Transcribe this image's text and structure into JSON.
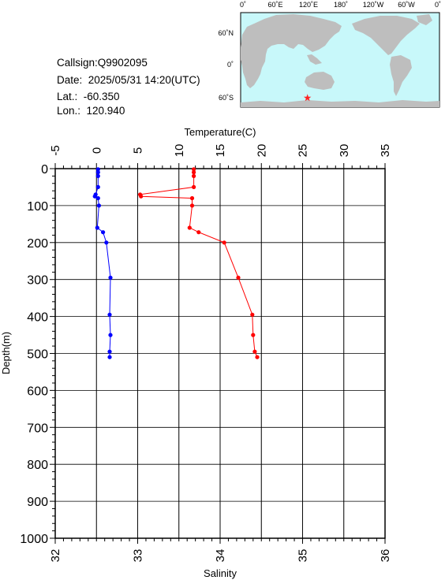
{
  "info": {
    "callsign": "Callsign:Q9902095",
    "date": "Date:  2025/05/31 14:20(UTC)",
    "lat": "Lat.:  -60.350",
    "lon": "Lon.:  120.940"
  },
  "map": {
    "top_labels": [
      "0˚",
      "60˚E",
      "120˚E",
      "180˚",
      "120˚W",
      "60˚W",
      "0˚"
    ],
    "lat_labels": [
      "60˚N",
      "0˚",
      "60˚S"
    ],
    "ocean_color": "#c8f8fa",
    "land_color": "#bebebe",
    "marker_icon": "star-icon",
    "marker_color": "#ff2222",
    "marker": {
      "lon": 120.94,
      "lat": -60.35
    }
  },
  "chart_data": {
    "type": "line",
    "top_axis": {
      "label": "Temperature(C)",
      "range": [
        -5,
        35
      ],
      "ticks": [
        "-5",
        "0",
        "5",
        "10",
        "15",
        "20",
        "25",
        "30",
        "35"
      ]
    },
    "bottom_axis": {
      "label": "Salinity",
      "range": [
        32,
        36
      ],
      "ticks": [
        "32",
        "33",
        "34",
        "35",
        "36"
      ]
    },
    "y_axis": {
      "label": "Depth(m)",
      "range": [
        0,
        1000
      ],
      "inverted": true,
      "ticks": [
        "0",
        "100",
        "200",
        "300",
        "400",
        "500",
        "600",
        "700",
        "800",
        "900",
        "1000"
      ]
    },
    "grid": true,
    "series": [
      {
        "axis": "temperature",
        "color": "#ff0000",
        "depth": [
          2,
          10,
          20,
          50,
          70,
          75,
          80,
          100,
          160,
          172,
          200,
          295,
          395,
          450,
          495,
          510
        ],
        "values": [
          11.8,
          11.8,
          11.8,
          11.8,
          5.3,
          5.4,
          11.6,
          11.6,
          11.3,
          12.4,
          15.5,
          17.2,
          18.9,
          19.0,
          19.2,
          19.5
        ]
      },
      {
        "axis": "salinity",
        "color": "#0000ff",
        "depth": [
          2,
          10,
          20,
          50,
          70,
          75,
          80,
          100,
          160,
          172,
          200,
          295,
          395,
          450,
          495,
          510
        ],
        "values": [
          32.52,
          32.52,
          32.52,
          32.52,
          32.49,
          32.48,
          32.52,
          32.53,
          32.51,
          32.58,
          32.62,
          32.67,
          32.66,
          32.67,
          32.66,
          32.66
        ]
      }
    ]
  }
}
